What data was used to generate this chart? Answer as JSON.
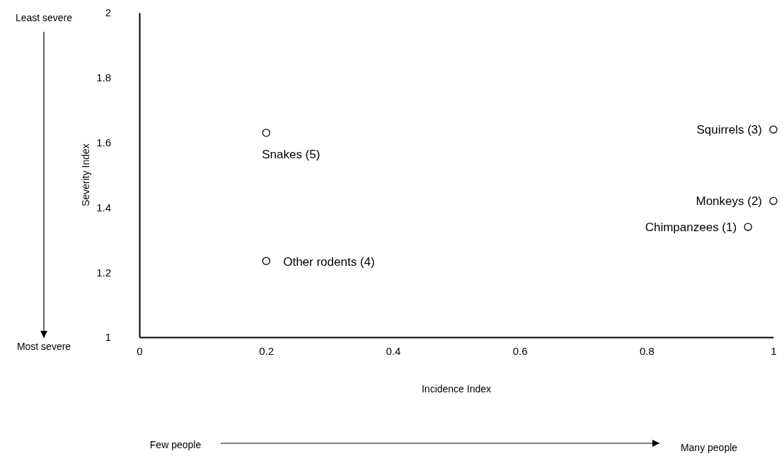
{
  "chart_data": {
    "type": "scatter",
    "xlabel": "Incidence Index",
    "ylabel": "Severity Index",
    "x": [
      0.96,
      1.0,
      1.0,
      0.2,
      0.2
    ],
    "series": [
      {
        "color": "#000000",
        "values": [
          1.34,
          1.42,
          1.64,
          1.235,
          1.63
        ]
      }
    ],
    "xlim": [
      0,
      1
    ],
    "xticks": [
      0,
      0.2,
      0.4,
      0.6,
      0.8,
      1
    ],
    "ylim": [
      1,
      2
    ],
    "yticks": [
      1,
      1.2,
      1.4,
      1.6,
      1.8,
      2
    ],
    "marker": "circle",
    "annotations": [
      "Least severe",
      "Most severe",
      "Few people",
      "Many people",
      {
        "text": "Chimpanzees (1)",
        "x": 0.96,
        "y": 1.34
      },
      {
        "text": "Monkeys (2)",
        "x": 1.0,
        "y": 1.42
      },
      {
        "text": "Squirrels (3)",
        "x": 1.0,
        "y": 1.64
      },
      {
        "text": "Other rodents (4)",
        "x": 0.2,
        "y": 1.235
      },
      {
        "text": "Snakes (5)",
        "x": 0.2,
        "y": 1.63
      }
    ]
  }
}
